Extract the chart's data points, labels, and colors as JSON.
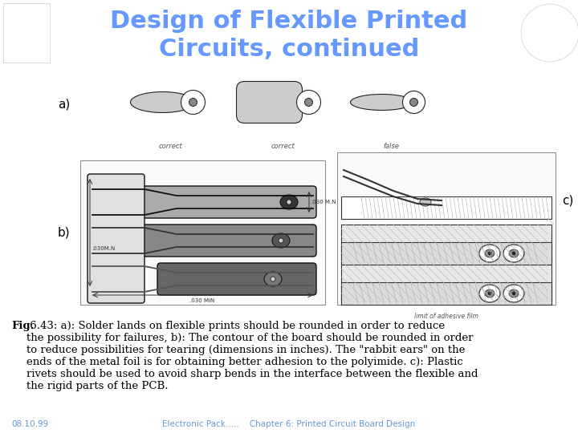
{
  "title_line1": "Design of Flexible Printed",
  "title_line2": "Circuits, continued",
  "title_color": "#6699FF",
  "title_fontsize": 22,
  "bg_color": "#FFFFFF",
  "label_a": "a)",
  "label_b": "b)",
  "label_c": "c)",
  "label_fontsize": 11,
  "caption_bold": "Fig.",
  "caption_rest": " 6.43: a): Solder lands on flexible prints should be rounded in order to reduce\nthe possibility for failures, b): The contour of the board should be rounded in order\nto reduce possibilities for tearing (dimensions in inches). The \"rabbit ears\" on the\nends of the metal foil is for obtaining better adhesion to the polyimide. c): Plastic\nrivets should be used to avoid sharp bends in the interface between the flexible and\nthe rigid parts of the PCB.",
  "caption_fontsize": 9.5,
  "footer_left": "08.10.99",
  "footer_center": "Electronic Pack.....    Chapter 6: Printed Circuit Board Design",
  "footer_fontsize": 7.5,
  "footer_color": "#6699CC",
  "correct1": "correct",
  "correct2": "correct",
  "false1": "false",
  "sub_label_fontsize": 6,
  "dim_label_color": "#333333",
  "limit_label": "limit of adhesive film"
}
